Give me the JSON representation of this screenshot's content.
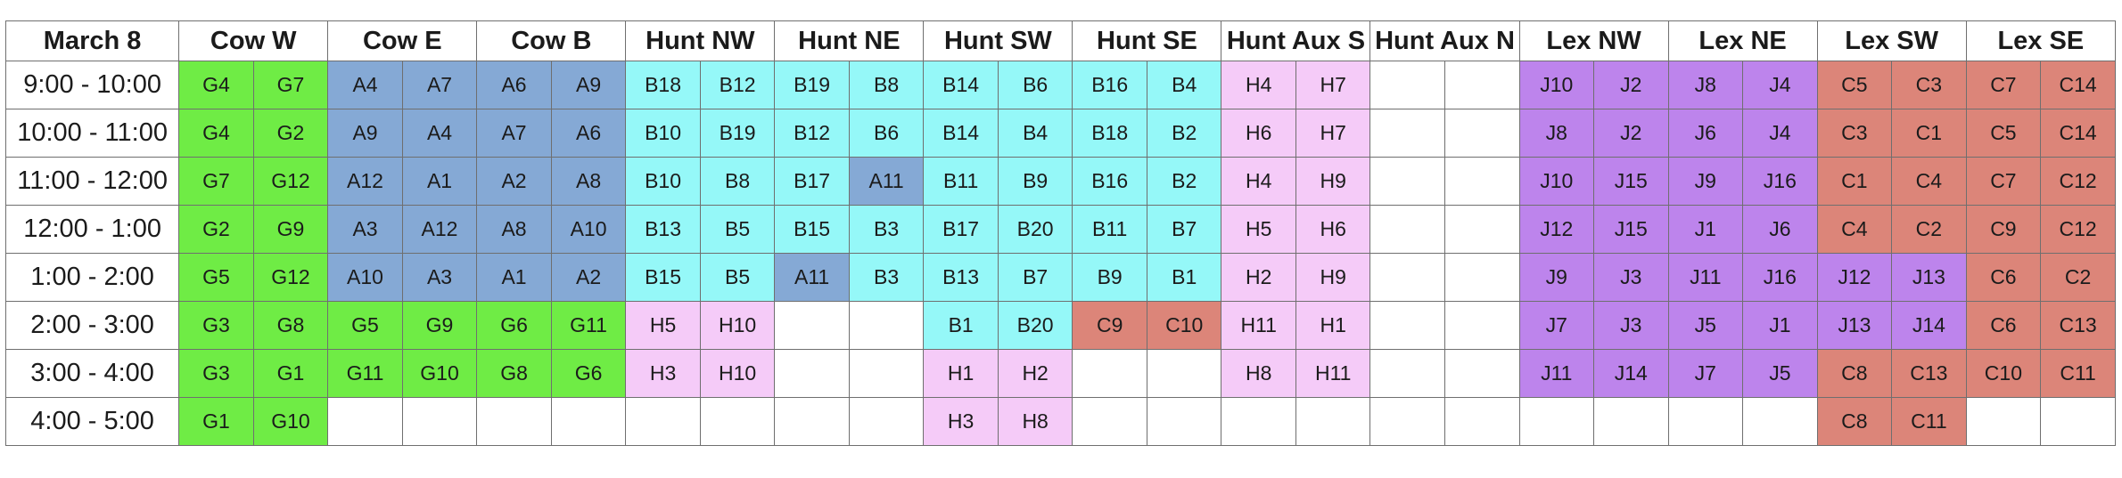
{
  "schedule": {
    "date": "March 8",
    "fields": [
      "Cow W",
      "Cow E",
      "Cow B",
      "Hunt NW",
      "Hunt NE",
      "Hunt SW",
      "Hunt SE",
      "Hunt Aux S",
      "Hunt Aux N",
      "Lex NW",
      "Lex NE",
      "Lex SW",
      "Lex SE"
    ],
    "times": [
      "9:00 - 10:00",
      "10:00 - 11:00",
      "11:00 - 12:00",
      "12:00 - 1:00",
      "1:00 - 2:00",
      "2:00 - 3:00",
      "3:00 - 4:00",
      "4:00 - 5:00"
    ],
    "rows": [
      [
        "G4",
        "G7",
        "A4",
        "A7",
        "A6",
        "A9",
        "B18",
        "B12",
        "B19",
        "B8",
        "B14",
        "B6",
        "B16",
        "B4",
        "H4",
        "H7",
        "",
        "",
        "J10",
        "J2",
        "J8",
        "J4",
        "C5",
        "C3",
        "C7",
        "C14"
      ],
      [
        "G4",
        "G2",
        "A9",
        "A4",
        "A7",
        "A6",
        "B10",
        "B19",
        "B12",
        "B6",
        "B14",
        "B4",
        "B18",
        "B2",
        "H6",
        "H7",
        "",
        "",
        "J8",
        "J2",
        "J6",
        "J4",
        "C3",
        "C1",
        "C5",
        "C14"
      ],
      [
        "G7",
        "G12",
        "A12",
        "A1",
        "A2",
        "A8",
        "B10",
        "B8",
        "B17",
        "A11",
        "B11",
        "B9",
        "B16",
        "B2",
        "H4",
        "H9",
        "",
        "",
        "J10",
        "J15",
        "J9",
        "J16",
        "C1",
        "C4",
        "C7",
        "C12"
      ],
      [
        "G2",
        "G9",
        "A3",
        "A12",
        "A8",
        "A10",
        "B13",
        "B5",
        "B15",
        "B3",
        "B17",
        "B20",
        "B11",
        "B7",
        "H5",
        "H6",
        "",
        "",
        "J12",
        "J15",
        "J1",
        "J6",
        "C4",
        "C2",
        "C9",
        "C12"
      ],
      [
        "G5",
        "G12",
        "A10",
        "A3",
        "A1",
        "A2",
        "B15",
        "B5",
        "A11",
        "B3",
        "B13",
        "B7",
        "B9",
        "B1",
        "H2",
        "H9",
        "",
        "",
        "J9",
        "J3",
        "J11",
        "J16",
        "J12",
        "J13",
        "C6",
        "C2"
      ],
      [
        "G3",
        "G8",
        "G5",
        "G9",
        "G6",
        "G11",
        "H5",
        "H10",
        "",
        "",
        "B1",
        "B20",
        "C9",
        "C10",
        "H11",
        "H1",
        "",
        "",
        "J7",
        "J3",
        "J5",
        "J1",
        "J13",
        "J14",
        "C6",
        "C13"
      ],
      [
        "G3",
        "G1",
        "G11",
        "G10",
        "G8",
        "G6",
        "H3",
        "H10",
        "",
        "",
        "H1",
        "H2",
        "",
        "",
        "H8",
        "H11",
        "",
        "",
        "J11",
        "J14",
        "J7",
        "J5",
        "C8",
        "C13",
        "C10",
        "C11"
      ],
      [
        "G1",
        "G10",
        "",
        "",
        "",
        "",
        "",
        "",
        "",
        "",
        "H3",
        "H8",
        "",
        "",
        "",
        "",
        "",
        "",
        "",
        "",
        "",
        "",
        "C8",
        "C11",
        "",
        ""
      ]
    ],
    "colors": [
      [
        "green",
        "green",
        "blue",
        "blue",
        "blue",
        "blue",
        "cyan",
        "cyan",
        "cyan",
        "cyan",
        "cyan",
        "cyan",
        "cyan",
        "cyan",
        "pink",
        "pink",
        "",
        "",
        "purple",
        "purple",
        "purple",
        "purple",
        "red",
        "red",
        "red",
        "red"
      ],
      [
        "green",
        "green",
        "blue",
        "blue",
        "blue",
        "blue",
        "cyan",
        "cyan",
        "cyan",
        "cyan",
        "cyan",
        "cyan",
        "cyan",
        "cyan",
        "pink",
        "pink",
        "",
        "",
        "purple",
        "purple",
        "purple",
        "purple",
        "red",
        "red",
        "red",
        "red"
      ],
      [
        "green",
        "green",
        "blue",
        "blue",
        "blue",
        "blue",
        "cyan",
        "cyan",
        "cyan",
        "blue",
        "cyan",
        "cyan",
        "cyan",
        "cyan",
        "pink",
        "pink",
        "",
        "",
        "purple",
        "purple",
        "purple",
        "purple",
        "red",
        "red",
        "red",
        "red"
      ],
      [
        "green",
        "green",
        "blue",
        "blue",
        "blue",
        "blue",
        "cyan",
        "cyan",
        "cyan",
        "cyan",
        "cyan",
        "cyan",
        "cyan",
        "cyan",
        "pink",
        "pink",
        "",
        "",
        "purple",
        "purple",
        "purple",
        "purple",
        "red",
        "red",
        "red",
        "red"
      ],
      [
        "green",
        "green",
        "blue",
        "blue",
        "blue",
        "blue",
        "cyan",
        "cyan",
        "blue",
        "cyan",
        "cyan",
        "cyan",
        "cyan",
        "cyan",
        "pink",
        "pink",
        "",
        "",
        "purple",
        "purple",
        "purple",
        "purple",
        "purple",
        "purple",
        "red",
        "red"
      ],
      [
        "green",
        "green",
        "green",
        "green",
        "green",
        "green",
        "pink",
        "pink",
        "",
        "",
        "cyan",
        "cyan",
        "red",
        "red",
        "pink",
        "pink",
        "",
        "",
        "purple",
        "purple",
        "purple",
        "purple",
        "purple",
        "purple",
        "red",
        "red"
      ],
      [
        "green",
        "green",
        "green",
        "green",
        "green",
        "green",
        "pink",
        "pink",
        "",
        "",
        "pink",
        "pink",
        "",
        "",
        "pink",
        "pink",
        "",
        "",
        "purple",
        "purple",
        "purple",
        "purple",
        "red",
        "red",
        "red",
        "red"
      ],
      [
        "green",
        "green",
        "",
        "",
        "",
        "",
        "",
        "",
        "",
        "",
        "pink",
        "pink",
        "",
        "",
        "",
        "",
        "",
        "",
        "",
        "",
        "",
        "",
        "red",
        "red",
        "",
        ""
      ]
    ]
  }
}
